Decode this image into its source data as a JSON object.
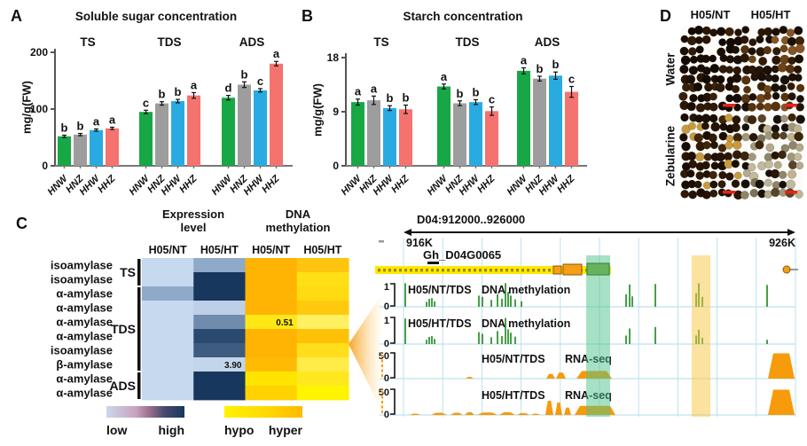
{
  "chart_data": [
    {
      "id": "A",
      "type": "bar",
      "panel_label": "A",
      "title": "Soluble sugar concentration",
      "ylabel": "mg/g(FW)",
      "ylim": [
        0,
        200
      ],
      "yticks": [
        0,
        100,
        200
      ],
      "grid": false,
      "categories": [
        "HNW",
        "HNZ",
        "HHW",
        "HHZ"
      ],
      "bar_colors": [
        "#17A744",
        "#9D9D9D",
        "#29ABE2",
        "#F4736E"
      ],
      "groups": [
        {
          "label": "TS",
          "values": [
            52,
            55,
            63,
            66
          ],
          "errors": [
            2,
            2,
            2,
            2
          ],
          "letters": [
            "b",
            "b",
            "a",
            "a"
          ]
        },
        {
          "label": "TDS",
          "values": [
            95,
            110,
            114,
            124
          ],
          "errors": [
            3,
            3,
            3,
            5
          ],
          "letters": [
            "c",
            "b",
            "b",
            "a"
          ]
        },
        {
          "label": "ADS",
          "values": [
            120,
            143,
            133,
            180
          ],
          "errors": [
            4,
            5,
            3,
            4
          ],
          "letters": [
            "d",
            "b",
            "c",
            "a"
          ]
        }
      ]
    },
    {
      "id": "B",
      "type": "bar",
      "panel_label": "B",
      "title": "Starch concentration",
      "ylabel": "mg/g(FW)",
      "ylim": [
        0,
        18
      ],
      "yticks": [
        0,
        9,
        18
      ],
      "grid": false,
      "categories": [
        "HNW",
        "HNZ",
        "HHW",
        "HHZ"
      ],
      "bar_colors": [
        "#17A744",
        "#9D9D9D",
        "#29ABE2",
        "#F4736E"
      ],
      "groups": [
        {
          "label": "TS",
          "values": [
            10.6,
            10.9,
            9.6,
            9.4
          ],
          "errors": [
            0.5,
            0.7,
            0.4,
            0.7
          ],
          "letters": [
            "a",
            "a",
            "b",
            "b"
          ]
        },
        {
          "label": "TDS",
          "values": [
            13.2,
            10.4,
            10.6,
            9.1
          ],
          "errors": [
            0.4,
            0.4,
            0.4,
            0.7
          ],
          "letters": [
            "a",
            "b",
            "b",
            "c"
          ]
        },
        {
          "label": "ADS",
          "values": [
            15.8,
            14.5,
            15.0,
            12.3
          ],
          "errors": [
            0.5,
            0.4,
            0.6,
            0.9
          ],
          "letters": [
            "a",
            "b",
            "b",
            "c"
          ]
        }
      ]
    },
    {
      "id": "C-heatmap",
      "type": "heatmap",
      "panel_label": "C",
      "header_lines": [
        [
          "Expression",
          "level"
        ],
        [
          "DNA",
          "methylation"
        ]
      ],
      "columns": [
        "H05/NT",
        "H05/HT",
        "H05/NT",
        "H05/HT"
      ],
      "rows": [
        {
          "gene": "isoamylase",
          "expression": [
            "#C6D9EE",
            "#8FA9C9"
          ],
          "methylation": [
            "#FFB404",
            "#FFC40E"
          ]
        },
        {
          "gene": "isoamylase",
          "expression": [
            "#C6D9EE",
            "#17375E"
          ],
          "methylation": [
            "#FFB404",
            "#FFDF16"
          ]
        },
        {
          "gene": "α-amylase",
          "expression": [
            "#8FA9C9",
            "#17375E"
          ],
          "methylation": [
            "#FFB404",
            "#FFDB12"
          ]
        },
        {
          "gene": "α-amylase",
          "expression": [
            "#C6D9EE",
            "#BDD0E7"
          ],
          "methylation": [
            "#FFB404",
            "#FFC90E"
          ]
        },
        {
          "gene": "α-amylase",
          "expression": [
            "#C6D9EE",
            "#6F8BAE"
          ],
          "methylation": [
            "#FFE716",
            "#FFF062"
          ],
          "note": "0.51",
          "note_col": 2
        },
        {
          "gene": "α-amylase",
          "expression": [
            "#C6D9EE",
            "#2A4A70"
          ],
          "methylation": [
            "#FFB404",
            "#FFC107"
          ]
        },
        {
          "gene": "isoamylase",
          "expression": [
            "#C6D9EE",
            "#3D5C80"
          ],
          "methylation": [
            "#FFB404",
            "#FFDE1C"
          ]
        },
        {
          "gene": "β-amylase",
          "expression": [
            "#C6D9EE",
            "#C3D5EB"
          ],
          "methylation": [
            "#FFBB04",
            "#FFEC48"
          ],
          "note": "3.90",
          "note_col": 1
        },
        {
          "gene": "α-amylase",
          "expression": [
            "#C6D9EE",
            "#17375E"
          ],
          "methylation": [
            "#FFE400",
            "#FFE81E"
          ]
        },
        {
          "gene": "α-amylase",
          "expression": [
            "#C6D9EE",
            "#17375E"
          ],
          "methylation": [
            "#FFD200",
            "#FFF400"
          ]
        }
      ],
      "row_groups": [
        {
          "label": "TS",
          "span": [
            0,
            1
          ]
        },
        {
          "label": "TDS",
          "span": [
            2,
            7
          ]
        },
        {
          "label": "ADS",
          "span": [
            8,
            9
          ]
        }
      ],
      "legend": {
        "low": "low",
        "high": "high",
        "hypo": "hypo",
        "hyper": "hyper",
        "expr_stops": [
          "#C9D8EC",
          "#C9A3BD 38%",
          "#9A6E8C 55%",
          "#45496E 75%",
          "#17375E"
        ],
        "meth_stops": [
          "#FFF200",
          "#FFD800 55%",
          "#FFB900"
        ]
      }
    },
    {
      "id": "C-browser",
      "type": "area",
      "region": "D04:912000..926000",
      "start_label": "916K",
      "end_label": "926K",
      "gene": "Gh_D04G0065",
      "tracks": [
        {
          "sample": "H05/NT/TDS",
          "assay": "DNA methylation",
          "ymax": "1",
          "ymin": "0",
          "color": "#1C871C",
          "peaks": [
            [
              457,
              0.95
            ],
            [
              481,
              0.2
            ],
            [
              484,
              0.32
            ],
            [
              487,
              0.35
            ],
            [
              490,
              0.22
            ],
            [
              540,
              0.45
            ],
            [
              544,
              0.4
            ],
            [
              554,
              0.28
            ],
            [
              561,
              0.5
            ],
            [
              566,
              0.32
            ],
            [
              570,
              0.95
            ],
            [
              573,
              0.6
            ],
            [
              576,
              0.45
            ],
            [
              581,
              0.3
            ],
            [
              588,
              0.22
            ],
            [
              706,
              0.5
            ],
            [
              710,
              0.9
            ],
            [
              713,
              0.42
            ],
            [
              739,
              0.92
            ],
            [
              785,
              0.55
            ],
            [
              788,
              0.95
            ],
            [
              792,
              0.4
            ],
            [
              865,
              0.88
            ]
          ]
        },
        {
          "sample": "H05/HT/TDS",
          "assay": "DNA methylation",
          "ymax": "1",
          "ymin": "0",
          "color": "#1C871C",
          "peaks": [
            [
              457,
              0.9
            ],
            [
              481,
              0.15
            ],
            [
              484,
              0.25
            ],
            [
              487,
              0.28
            ],
            [
              490,
              0.18
            ],
            [
              540,
              0.42
            ],
            [
              544,
              0.36
            ],
            [
              554,
              0.24
            ],
            [
              561,
              0.46
            ],
            [
              566,
              0.28
            ],
            [
              570,
              0.92
            ],
            [
              573,
              0.52
            ],
            [
              576,
              0.4
            ],
            [
              581,
              0.26
            ],
            [
              706,
              0.3
            ],
            [
              710,
              0.55
            ],
            [
              739,
              0.6
            ],
            [
              785,
              0.3
            ],
            [
              788,
              0.5
            ],
            [
              792,
              0.22
            ],
            [
              865,
              0.15
            ]
          ]
        },
        {
          "sample": "H05/NT/TDS",
          "assay": "RNA-seq",
          "ymax": "50",
          "ymin": "0",
          "color": "#F79A0B",
          "shapes": [
            [
              525,
              534,
              0.06
            ],
            [
              616,
              626,
              0.17
            ],
            [
              627,
              638,
              0.22
            ],
            [
              650,
              690,
              0.28
            ],
            [
              866,
              896,
              0.92
            ]
          ]
        },
        {
          "sample": "H05/HT/TDS",
          "assay": "RNA-seq",
          "ymax": "50",
          "ymin": "0",
          "color": "#F79A0B",
          "shapes": [
            [
              462,
              474,
              0.05
            ],
            [
              486,
              504,
              0.08
            ],
            [
              508,
              522,
              0.08
            ],
            [
              524,
              535,
              0.1
            ],
            [
              538,
              561,
              0.09
            ],
            [
              563,
              581,
              0.1
            ],
            [
              583,
              597,
              0.07
            ],
            [
              599,
              609,
              0.05
            ],
            [
              615,
              624,
              0.52
            ],
            [
              626,
              634,
              0.45
            ],
            [
              636,
              644,
              0.27
            ],
            [
              648,
              694,
              0.33
            ],
            [
              866,
              896,
              0.92
            ]
          ]
        }
      ],
      "highlights": [
        {
          "x": 661,
          "w": 27,
          "color": "rgba(80,195,140,0.5)"
        },
        {
          "x": 780,
          "w": 21,
          "color": "rgba(250,198,64,0.5)"
        }
      ],
      "gene_model": {
        "bar": [
          423,
          300,
          266,
          9
        ],
        "exons": [
          [
            624,
            300,
            9,
            9
          ],
          [
            635,
            298,
            21,
            12
          ]
        ],
        "green_exon": [
          662,
          297,
          25,
          13
        ],
        "right_dot": [
          887,
          304
        ]
      }
    }
  ],
  "seed_panels": {
    "panel_label": "D",
    "col_labels": [
      "H05/NT",
      "H05/HT"
    ],
    "row_labels": [
      "Water",
      "Zebularine"
    ],
    "bg": "#FCFBF7",
    "scalebar_color": "#E8231A",
    "quadrants": [
      {
        "palette": [
          "#170B03",
          "#211004",
          "#2B1505",
          "#190D03",
          "#130902",
          "#301A07",
          "#1D0E04",
          "#3A2009"
        ],
        "rseed": 7
      },
      {
        "palette": [
          "#1B0E04",
          "#2A1605",
          "#3E2408",
          "#56320F",
          "#6E4416",
          "#23140A",
          "#855424",
          "#301B08",
          "#191006"
        ],
        "rseed": 13
      },
      {
        "palette": [
          "#1C0E03",
          "#261303",
          "#311A06",
          "#190C03",
          "#3F250A",
          "#C79B3D",
          "#2A1604",
          "#211003"
        ],
        "rseed": 21
      },
      {
        "palette": [
          "#B3A98B",
          "#A1977B",
          "#C3B99B",
          "#8F8669",
          "#7B7257",
          "#281605",
          "#3B2609",
          "#584428",
          "#18100A",
          "#BFB492"
        ],
        "rseed": 31
      }
    ]
  }
}
